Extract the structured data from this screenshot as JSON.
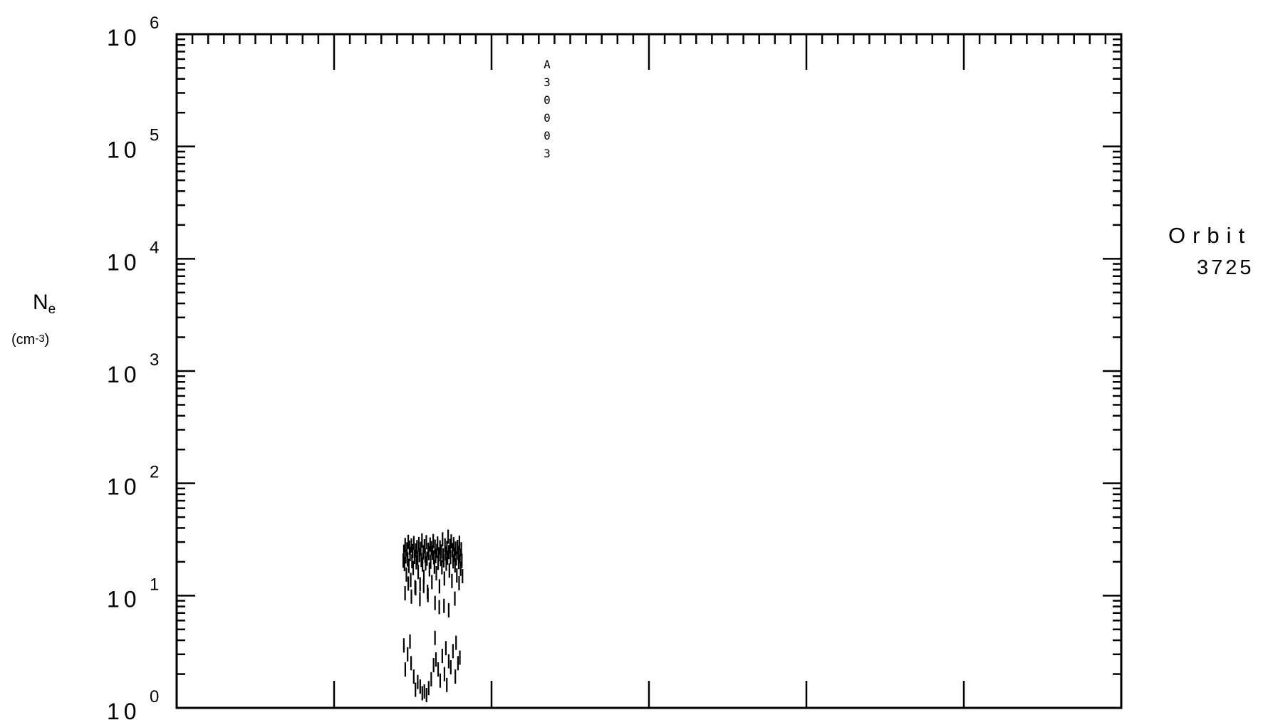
{
  "chart_data": {
    "type": "scatter",
    "title": "",
    "ylabel_symbol": "N",
    "ylabel_subscript": "e",
    "ylabel_unit_base": "(cm",
    "ylabel_unit_exp": "-3",
    "ylabel_unit_close": ")",
    "yscale": "log",
    "ylim": [
      1,
      1000000
    ],
    "y_tick_labels": [
      {
        "base": "10",
        "exp": "0"
      },
      {
        "base": "10",
        "exp": "1"
      },
      {
        "base": "10",
        "exp": "2"
      },
      {
        "base": "10",
        "exp": "3"
      },
      {
        "base": "10",
        "exp": "4"
      },
      {
        "base": "10",
        "exp": "5"
      },
      {
        "base": "10",
        "exp": "6"
      }
    ],
    "x_major_ticks": 6,
    "annotation": "A30003",
    "side_label": "Orbit",
    "side_value": "3725",
    "series": [
      {
        "values": [
          [
            0.2399,
            20.5
          ],
          [
            0.2405,
            24.6
          ],
          [
            0.2412,
            19.1
          ],
          [
            0.2419,
            28.2
          ],
          [
            0.2425,
            22.3
          ],
          [
            0.2432,
            15.4
          ],
          [
            0.2438,
            25.8
          ],
          [
            0.2445,
            21.0
          ],
          [
            0.2452,
            30.1
          ],
          [
            0.2458,
            18.4
          ],
          [
            0.2465,
            26.7
          ],
          [
            0.2471,
            23.5
          ],
          [
            0.2478,
            13.8
          ],
          [
            0.2485,
            27.9
          ],
          [
            0.2491,
            20.3
          ],
          [
            0.2498,
            24.9
          ],
          [
            0.2504,
            17.6
          ],
          [
            0.2511,
            29.4
          ],
          [
            0.2518,
            22.1
          ],
          [
            0.2524,
            11.9
          ],
          [
            0.2531,
            25.2
          ],
          [
            0.2537,
            19.8
          ],
          [
            0.2544,
            27.0
          ],
          [
            0.2551,
            21.6
          ],
          [
            0.2557,
            16.2
          ],
          [
            0.2564,
            28.8
          ],
          [
            0.257,
            23.0
          ],
          [
            0.2577,
            12.6
          ],
          [
            0.2584,
            26.1
          ],
          [
            0.259,
            20.8
          ],
          [
            0.2597,
            31.0
          ],
          [
            0.2603,
            18.9
          ],
          [
            0.261,
            24.3
          ],
          [
            0.2617,
            14.7
          ],
          [
            0.2623,
            27.5
          ],
          [
            0.263,
            22.7
          ],
          [
            0.2636,
            19.4
          ],
          [
            0.2643,
            29.9
          ],
          [
            0.265,
            21.3
          ],
          [
            0.2656,
            10.8
          ],
          [
            0.2663,
            25.6
          ],
          [
            0.2669,
            23.9
          ],
          [
            0.2676,
            17.1
          ],
          [
            0.2683,
            28.5
          ],
          [
            0.2689,
            20.0
          ],
          [
            0.2696,
            26.4
          ],
          [
            0.2702,
            13.2
          ],
          [
            0.2709,
            24.1
          ],
          [
            0.2716,
            30.6
          ],
          [
            0.2722,
            21.9
          ],
          [
            0.2729,
            18.1
          ],
          [
            0.2735,
            27.3
          ],
          [
            0.2742,
            22.5
          ],
          [
            0.2749,
            15.8
          ],
          [
            0.2755,
            25.0
          ],
          [
            0.2762,
            29.1
          ],
          [
            0.2768,
            19.6
          ],
          [
            0.2775,
            23.3
          ],
          [
            0.2782,
            12.1
          ],
          [
            0.2788,
            26.9
          ],
          [
            0.2795,
            21.1
          ],
          [
            0.2801,
            24.7
          ],
          [
            0.2808,
            17.9
          ],
          [
            0.2815,
            31.7
          ],
          [
            0.2821,
            22.9
          ],
          [
            0.2828,
            20.6
          ],
          [
            0.2834,
            14.2
          ],
          [
            0.2841,
            28.0
          ],
          [
            0.2848,
            23.7
          ],
          [
            0.2854,
            19.2
          ],
          [
            0.2861,
            26.6
          ],
          [
            0.2867,
            21.8
          ],
          [
            0.2874,
            33.5
          ],
          [
            0.2881,
            24.4
          ],
          [
            0.2887,
            16.7
          ],
          [
            0.2894,
            27.7
          ],
          [
            0.29,
            22.0
          ],
          [
            0.2907,
            30.4
          ],
          [
            0.2914,
            13.5
          ],
          [
            0.292,
            25.4
          ],
          [
            0.2927,
            20.2
          ],
          [
            0.2933,
            28.7
          ],
          [
            0.294,
            23.2
          ],
          [
            0.2947,
            18.6
          ],
          [
            0.2953,
            26.2
          ],
          [
            0.296,
            21.4
          ],
          [
            0.2966,
            15.1
          ],
          [
            0.2973,
            27.1
          ],
          [
            0.298,
            24.0
          ],
          [
            0.2986,
            19.9
          ],
          [
            0.2993,
            29.6
          ],
          [
            0.2999,
            22.6
          ],
          [
            0.3006,
            17.3
          ],
          [
            0.3013,
            25.9
          ],
          [
            0.3019,
            20.4
          ],
          [
            0.3026,
            14.9
          ],
          [
            0.2418,
            10.5
          ],
          [
            0.2452,
            12.8
          ],
          [
            0.2485,
            9.8
          ],
          [
            0.253,
            11.6
          ],
          [
            0.2575,
            9.3
          ],
          [
            0.2615,
            12.2
          ],
          [
            0.266,
            10.1
          ],
          [
            0.2735,
            8.6
          ],
          [
            0.278,
            7.9
          ],
          [
            0.283,
            8.1
          ],
          [
            0.288,
            7.4
          ],
          [
            0.2945,
            9.4
          ],
          [
            0.299,
            12.9
          ],
          [
            0.2405,
            3.6
          ],
          [
            0.242,
            2.2
          ],
          [
            0.2445,
            3.0
          ],
          [
            0.247,
            3.9
          ],
          [
            0.2482,
            2.5
          ],
          [
            0.251,
            1.9
          ],
          [
            0.2528,
            1.45
          ],
          [
            0.2552,
            1.7
          ],
          [
            0.2578,
            1.55
          ],
          [
            0.26,
            1.35
          ],
          [
            0.2622,
            1.4
          ],
          [
            0.2645,
            1.3
          ],
          [
            0.2668,
            1.5
          ],
          [
            0.2695,
            1.8
          ],
          [
            0.272,
            2.4
          ],
          [
            0.2745,
            2.7
          ],
          [
            0.2768,
            2.2
          ],
          [
            0.279,
            1.75
          ],
          [
            0.2812,
            2.9
          ],
          [
            0.2835,
            2.0
          ],
          [
            0.286,
            1.6
          ],
          [
            0.288,
            2.6
          ],
          [
            0.2902,
            2.3
          ],
          [
            0.2925,
            3.2
          ],
          [
            0.295,
            1.9
          ],
          [
            0.2978,
            2.5
          ],
          [
            0.2998,
            2.8
          ],
          [
            0.2958,
            3.8
          ],
          [
            0.285,
            3.4
          ],
          [
            0.2735,
            4.2
          ]
        ]
      }
    ]
  }
}
